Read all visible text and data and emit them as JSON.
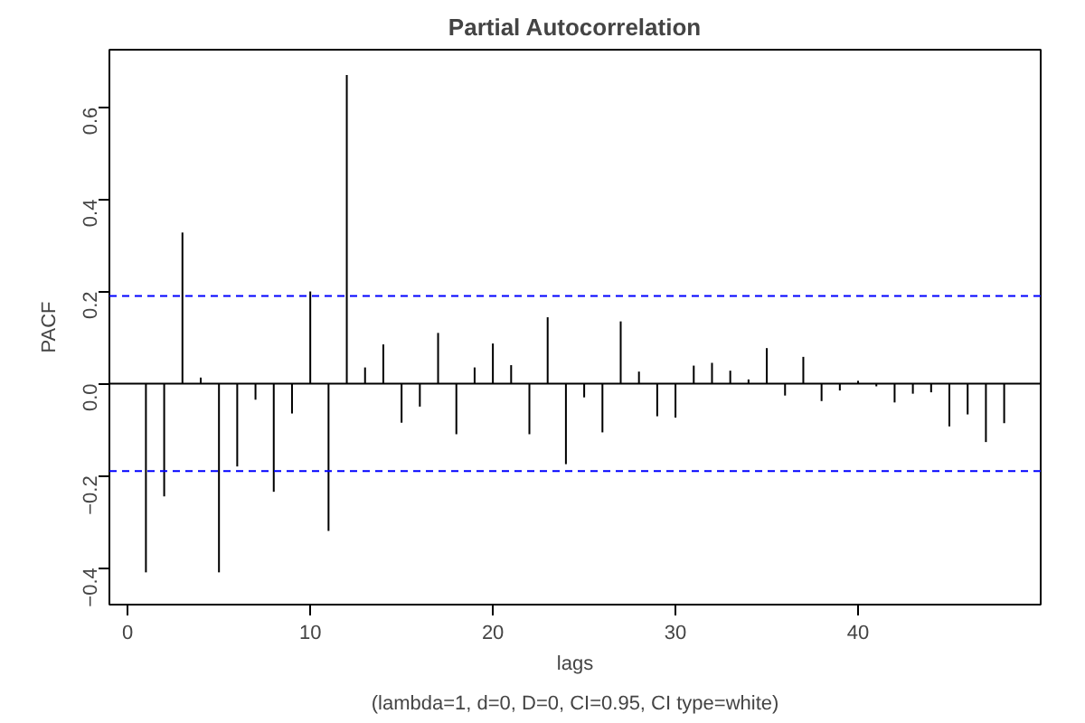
{
  "chart_data": {
    "type": "bar",
    "title": "Partial Autocorrelation",
    "xlabel": "lags",
    "ylabel": "PACF",
    "annotations": [
      "(lambda=1, d=0, D=0, CI=0.95, CI type=white)"
    ],
    "x": [
      1,
      2,
      3,
      4,
      5,
      6,
      7,
      8,
      9,
      10,
      11,
      12,
      13,
      14,
      15,
      16,
      17,
      18,
      19,
      20,
      21,
      22,
      23,
      24,
      25,
      26,
      27,
      28,
      29,
      30,
      31,
      32,
      33,
      34,
      35,
      36,
      37,
      38,
      39,
      40,
      41,
      42,
      43,
      44,
      45,
      46,
      47,
      48
    ],
    "values": [
      -0.41,
      -0.245,
      0.328,
      0.013,
      -0.41,
      -0.18,
      -0.035,
      -0.235,
      -0.065,
      0.2,
      -0.32,
      0.67,
      0.035,
      0.085,
      -0.085,
      -0.05,
      0.11,
      -0.11,
      0.035,
      0.087,
      0.04,
      -0.11,
      0.144,
      -0.175,
      -0.03,
      -0.106,
      0.135,
      0.026,
      -0.071,
      -0.074,
      0.039,
      0.045,
      0.028,
      0.009,
      0.077,
      -0.026,
      0.058,
      -0.038,
      -0.015,
      0.006,
      -0.006,
      -0.041,
      -0.022,
      -0.019,
      -0.093,
      -0.067,
      -0.127,
      -0.086
    ],
    "color": "#000000",
    "xlim": [
      -1,
      50
    ],
    "ylim": [
      -0.48,
      0.725
    ],
    "xticks": [
      0,
      10,
      20,
      30,
      40
    ],
    "yticks": [
      -0.4,
      -0.2,
      {
        "value": 0,
        "label": "0.0"
      },
      0.2,
      0.4,
      0.6
    ],
    "ref_lines": [
      {
        "axis": "y",
        "value": 0,
        "color": "#000000",
        "line_style": "solid"
      },
      {
        "axis": "y",
        "value": 0.19,
        "color": "#0000ff",
        "line_style": "dashed"
      },
      {
        "axis": "y",
        "value": -0.19,
        "color": "#0000ff",
        "line_style": "dashed"
      }
    ],
    "grid": false
  }
}
